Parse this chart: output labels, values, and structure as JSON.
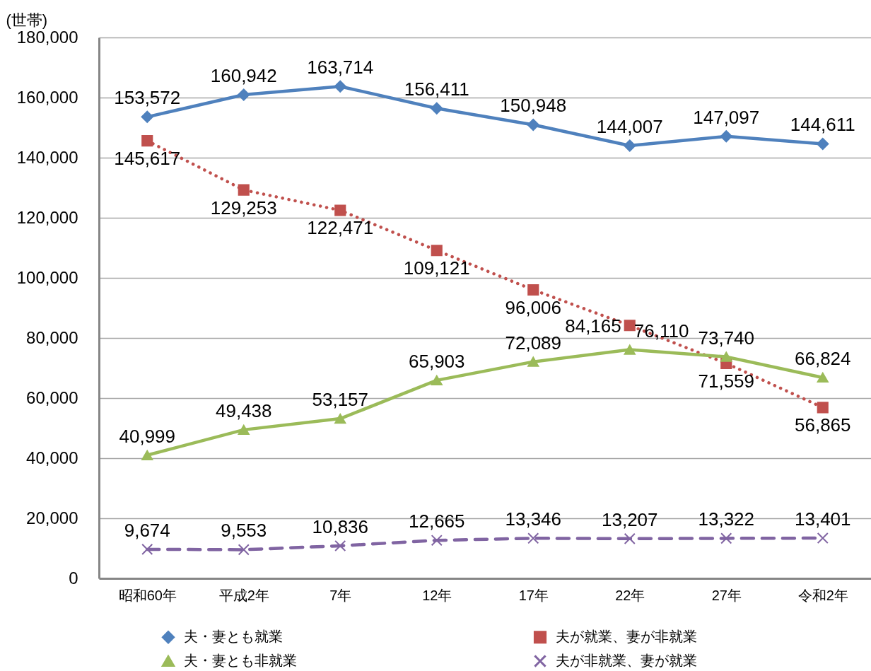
{
  "chart_data": {
    "type": "line",
    "ylabel": "(世帯)",
    "categories": [
      "昭和60年",
      "平成2年",
      "7年",
      "12年",
      "17年",
      "22年",
      "27年",
      "令和2年"
    ],
    "series": [
      {
        "name": "夫・妻とも就業",
        "color": "#4f81bd",
        "marker": "diamond",
        "line_style": "solid",
        "values": [
          153572,
          160942,
          163714,
          156411,
          150948,
          144007,
          147097,
          144611
        ],
        "value_labels": [
          "153,572",
          "160,942",
          "163,714",
          "156,411",
          "150,948",
          "144,007",
          "147,097",
          "144,611"
        ]
      },
      {
        "name": "夫が就業、妻が非就業",
        "color": "#c0504d",
        "marker": "square",
        "line_style": "dotted",
        "values": [
          145617,
          129253,
          122471,
          109121,
          96006,
          84165,
          71559,
          56865
        ],
        "value_labels": [
          "145,617",
          "129,253",
          "122,471",
          "109,121",
          "96,006",
          "84,165",
          "71,559",
          "56,865"
        ]
      },
      {
        "name": "夫・妻とも非就業",
        "color": "#9bbb59",
        "marker": "triangle",
        "line_style": "solid",
        "values": [
          40999,
          49438,
          53157,
          65903,
          72089,
          76110,
          73740,
          66824
        ],
        "value_labels": [
          "40,999",
          "49,438",
          "53,157",
          "65,903",
          "72,089",
          "76,110",
          "73,740",
          "66,824"
        ]
      },
      {
        "name": "夫が非就業、妻が就業",
        "color": "#8064a2",
        "marker": "cross",
        "line_style": "dashed",
        "values": [
          9674,
          9553,
          10836,
          12665,
          13346,
          13207,
          13322,
          13401
        ],
        "value_labels": [
          "9,674",
          "9,553",
          "10,836",
          "12,665",
          "13,346",
          "13,207",
          "13,322",
          "13,401"
        ]
      }
    ],
    "ylim": [
      0,
      180000
    ],
    "yticks": [
      {
        "value": 0,
        "label": "0"
      },
      {
        "value": 20000,
        "label": "20,000"
      },
      {
        "value": 40000,
        "label": "40,000"
      },
      {
        "value": 60000,
        "label": "60,000"
      },
      {
        "value": 80000,
        "label": "80,000"
      },
      {
        "value": 100000,
        "label": "100,000"
      },
      {
        "value": 120000,
        "label": "120,000"
      },
      {
        "value": 140000,
        "label": "140,000"
      },
      {
        "value": 160000,
        "label": "160,000"
      },
      {
        "value": 180000,
        "label": "180,000"
      }
    ],
    "grid": "y",
    "legend": "bottom"
  }
}
